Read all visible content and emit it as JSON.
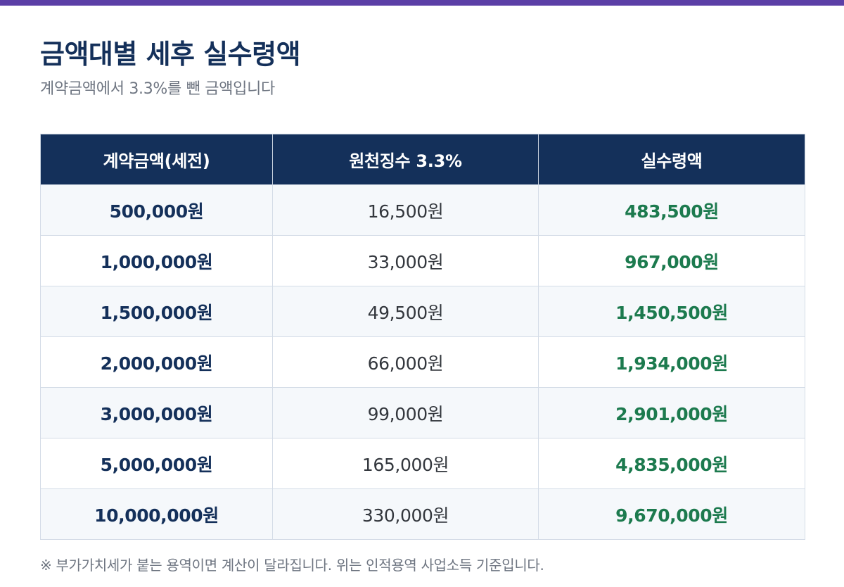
{
  "title": "금액대별 세후 실수령액",
  "subtitle": "계약금액에서 3.3%를 뺀 금액입니다",
  "colors": {
    "top_bar": "#5b3fa6",
    "header_bg": "#14305a",
    "gross_text": "#14305a",
    "net_text": "#1c7a4e"
  },
  "table": {
    "headers": [
      "계약금액(세전)",
      "원천징수 3.3%",
      "실수령액"
    ],
    "rows": [
      [
        "500,000원",
        "16,500원",
        "483,500원"
      ],
      [
        "1,000,000원",
        "33,000원",
        "967,000원"
      ],
      [
        "1,500,000원",
        "49,500원",
        "1,450,500원"
      ],
      [
        "2,000,000원",
        "66,000원",
        "1,934,000원"
      ],
      [
        "3,000,000원",
        "99,000원",
        "2,901,000원"
      ],
      [
        "5,000,000원",
        "165,000원",
        "4,835,000원"
      ],
      [
        "10,000,000원",
        "330,000원",
        "9,670,000원"
      ]
    ]
  },
  "footnote": "※ 부가가치세가 붙는 용역이면 계산이 달라집니다. 위는 인적용역 사업소득 기준입니다."
}
